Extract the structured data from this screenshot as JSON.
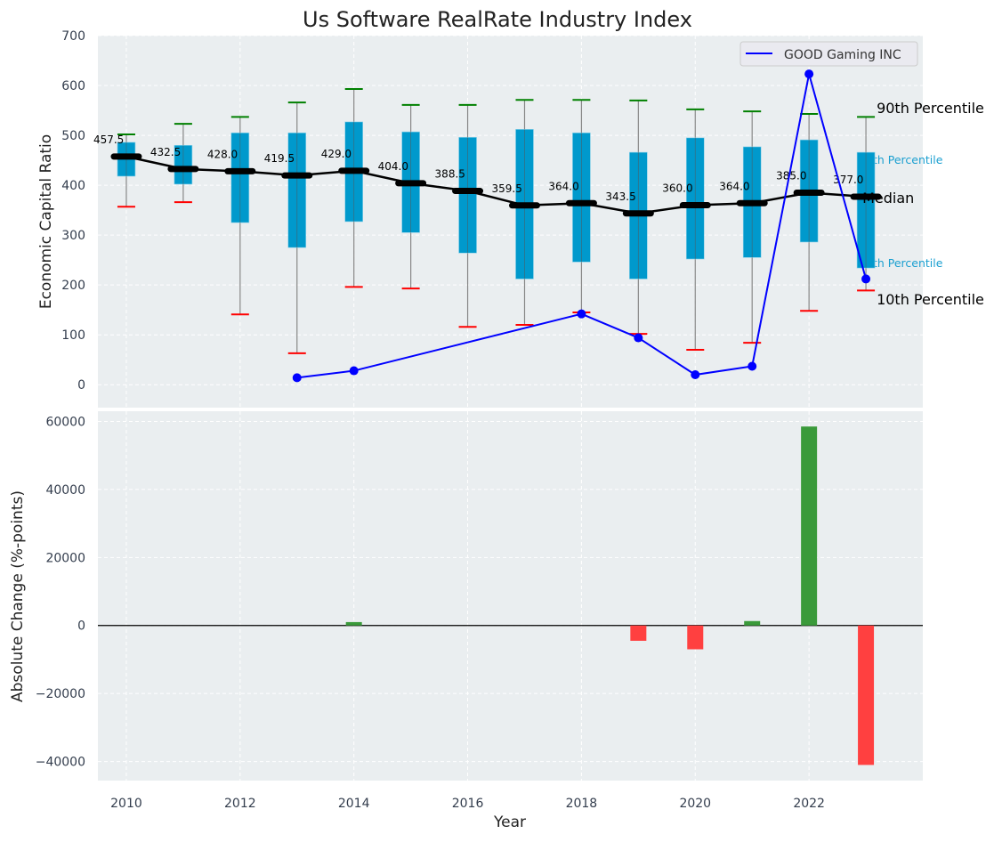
{
  "chart_data": [
    {
      "type": "box",
      "title": "Us Software RealRate Industry Index",
      "xlabel": "",
      "ylabel": "Economic Capital Ratio",
      "ylim": [
        -46,
        700
      ],
      "xlim": [
        2009.5,
        2024.0
      ],
      "yticks": [
        0,
        100,
        200,
        300,
        400,
        500,
        600,
        700
      ],
      "grid": true,
      "years": [
        2010,
        2011,
        2012,
        2013,
        2014,
        2015,
        2016,
        2017,
        2018,
        2019,
        2020,
        2021,
        2022,
        2023
      ],
      "p10": [
        357,
        366,
        141,
        63,
        196,
        193,
        116,
        120,
        145,
        102,
        70,
        84,
        148,
        189
      ],
      "p25": [
        418,
        402,
        325,
        275,
        327,
        305,
        264,
        212,
        246,
        212,
        252,
        255,
        286,
        234
      ],
      "median": [
        457.5,
        432.5,
        428.0,
        419.5,
        429.0,
        404.0,
        388.5,
        359.5,
        364.0,
        343.5,
        360.0,
        364.0,
        385.0,
        377.0
      ],
      "median_labels": [
        "457.5",
        "432.5",
        "428.0",
        "419.5",
        "429.0",
        "404.0",
        "388.5",
        "359.5",
        "364.0",
        "343.5",
        "360.0",
        "364.0",
        "385.0",
        "377.0"
      ],
      "p75": [
        486,
        480,
        505,
        505,
        527,
        507,
        496,
        512,
        505,
        466,
        495,
        477,
        491,
        466
      ],
      "p90": [
        502,
        523,
        537,
        566,
        593,
        561,
        561,
        571,
        571,
        570,
        552,
        548,
        543,
        537
      ],
      "company": {
        "name": "GOOD Gaming INC",
        "x": [
          2013,
          2014,
          2018,
          2019,
          2020,
          2021,
          2022,
          2023
        ],
        "y": [
          14,
          28,
          142,
          94,
          20,
          37,
          623,
          212
        ],
        "color": "#0000ff"
      },
      "legend": {
        "position": "top-right",
        "entries": [
          "GOOD Gaming INC"
        ]
      },
      "annotations": {
        "p90": "90th Percentile",
        "p75": "75th Percentile",
        "median": "Median",
        "p25": "25th Percentile",
        "p10": "10th Percentile"
      },
      "colors": {
        "box": "#0099cc",
        "p90": "#008000",
        "p10": "#ff0000",
        "median": "#000000",
        "background": "#eaeef0"
      }
    },
    {
      "type": "bar",
      "xlabel": "Year",
      "ylabel": "Absolute Change (%-points)",
      "ylim": [
        -45600,
        63000
      ],
      "yticks": [
        -40000,
        -20000,
        0,
        20000,
        40000,
        60000
      ],
      "ytick_labels": [
        "−40000",
        "−20000",
        "0",
        "20000",
        "40000",
        "60000"
      ],
      "xticks": [
        2010,
        2012,
        2014,
        2016,
        2018,
        2020,
        2022
      ],
      "x": [
        2014,
        2019,
        2020,
        2021,
        2022,
        2023
      ],
      "values": [
        1000,
        -4500,
        -7000,
        1300,
        58500,
        -41000
      ],
      "colors": {
        "positive": "#3a9a3a",
        "negative": "#ff4040"
      }
    }
  ]
}
